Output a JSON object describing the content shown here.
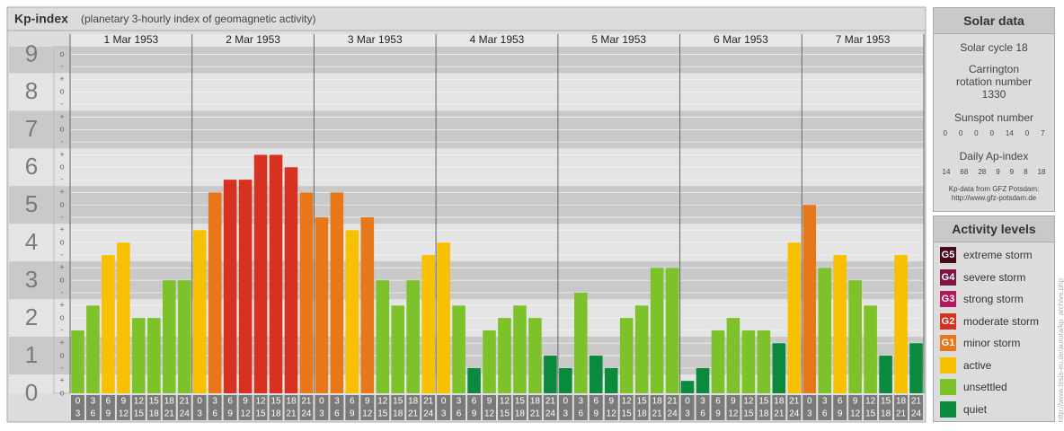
{
  "chart_data": {
    "type": "bar",
    "title": "Kp-index",
    "subtitle": "(planetary 3-hourly index of geomagnetic activity)",
    "days": [
      "1 Mar 1953",
      "2 Mar 1953",
      "3 Mar 1953",
      "4 Mar 1953",
      "5 Mar 1953",
      "6 Mar 1953",
      "7 Mar 1953"
    ],
    "hours": [
      [
        "0",
        "3"
      ],
      [
        "3",
        "6"
      ],
      [
        "6",
        "9"
      ],
      [
        "9",
        "12"
      ],
      [
        "12",
        "15"
      ],
      [
        "15",
        "18"
      ],
      [
        "18",
        "21"
      ],
      [
        "21",
        "24"
      ]
    ],
    "values": [
      1.67,
      2.33,
      3.67,
      4,
      2,
      2,
      3,
      3,
      4.33,
      5.33,
      5.67,
      5.67,
      6.33,
      6.33,
      6,
      5.33,
      4.67,
      5.33,
      4.33,
      4.67,
      3,
      2.33,
      3,
      3.67,
      4,
      2.33,
      0.67,
      1.67,
      2,
      2.33,
      2,
      1,
      0.67,
      2.67,
      1,
      0.67,
      2,
      2.33,
      3.33,
      3.33,
      0.33,
      0.67,
      1.67,
      2,
      1.67,
      1.67,
      1.33,
      4,
      5,
      3.33,
      3.67,
      3,
      2.33,
      1,
      3.67,
      1.33
    ],
    "colors": [
      "#7dc12b",
      "#7dc12b",
      "#f7c000",
      "#f7c000",
      "#7dc12b",
      "#7dc12b",
      "#7dc12b",
      "#7dc12b",
      "#f7c000",
      "#e8771a",
      "#d8311f",
      "#d8311f",
      "#d8311f",
      "#d8311f",
      "#d8311f",
      "#e8771a",
      "#e8771a",
      "#e8771a",
      "#f7c000",
      "#e8771a",
      "#7dc12b",
      "#7dc12b",
      "#7dc12b",
      "#f7c000",
      "#f7c000",
      "#7dc12b",
      "#0b8a3e",
      "#7dc12b",
      "#7dc12b",
      "#7dc12b",
      "#7dc12b",
      "#0b8a3e",
      "#0b8a3e",
      "#7dc12b",
      "#0b8a3e",
      "#0b8a3e",
      "#7dc12b",
      "#7dc12b",
      "#7dc12b",
      "#7dc12b",
      "#0b8a3e",
      "#0b8a3e",
      "#7dc12b",
      "#7dc12b",
      "#7dc12b",
      "#7dc12b",
      "#0b8a3e",
      "#f7c000",
      "#e8771a",
      "#7dc12b",
      "#f7c000",
      "#7dc12b",
      "#7dc12b",
      "#0b8a3e",
      "#f7c000",
      "#0b8a3e"
    ],
    "ylim": [
      0,
      9.2
    ],
    "yticks": [
      0,
      1,
      2,
      3,
      4,
      5,
      6,
      7,
      8,
      9
    ],
    "yminor_ticks": [
      {
        "value": 0,
        "label": "o"
      },
      {
        "value": 0.33,
        "label": "+"
      },
      {
        "value": 0.67,
        "label": "-"
      },
      {
        "value": 1,
        "label": "o"
      },
      {
        "value": 1.33,
        "label": "+"
      },
      {
        "value": 1.67,
        "label": "-"
      },
      {
        "value": 2,
        "label": "o"
      },
      {
        "value": 2.33,
        "label": "+"
      },
      {
        "value": 2.67,
        "label": "-"
      },
      {
        "value": 3,
        "label": "o"
      },
      {
        "value": 3.33,
        "label": "+"
      },
      {
        "value": 3.67,
        "label": "-"
      },
      {
        "value": 4,
        "label": "o"
      },
      {
        "value": 4.33,
        "label": "+"
      },
      {
        "value": 4.67,
        "label": "-"
      },
      {
        "value": 5,
        "label": "o"
      },
      {
        "value": 5.33,
        "label": "+"
      },
      {
        "value": 5.67,
        "label": "-"
      },
      {
        "value": 6,
        "label": "o"
      },
      {
        "value": 6.33,
        "label": "+"
      },
      {
        "value": 6.67,
        "label": "-"
      },
      {
        "value": 7,
        "label": "o"
      },
      {
        "value": 7.33,
        "label": "+"
      },
      {
        "value": 7.67,
        "label": "-"
      },
      {
        "value": 8,
        "label": "o"
      },
      {
        "value": 8.33,
        "label": "+"
      },
      {
        "value": 8.67,
        "label": "-"
      },
      {
        "value": 9,
        "label": "o"
      }
    ],
    "grid": true,
    "legend": {
      "title": "Activity levels",
      "items": [
        {
          "badge": "G5",
          "name": "extreme storm",
          "color": "#4a0a1e"
        },
        {
          "badge": "G4",
          "name": "severe storm",
          "color": "#7c1446"
        },
        {
          "badge": "G3",
          "name": "strong storm",
          "color": "#b3175d"
        },
        {
          "badge": "G2",
          "name": "moderate storm",
          "color": "#d8311f"
        },
        {
          "badge": "G1",
          "name": "minor storm",
          "color": "#e8771a"
        },
        {
          "name": "active",
          "color": "#f7c000"
        },
        {
          "name": "unsettled",
          "color": "#7dc12b"
        },
        {
          "name": "quiet",
          "color": "#0b8a3e"
        }
      ]
    }
  },
  "solar_data": {
    "title": "Solar data",
    "cycle": "Solar cycle 18",
    "carrington": "Carrington rotation number 1330",
    "sunspot_title": "Sunspot number",
    "sunspots": [
      0,
      0,
      0,
      0,
      14,
      0,
      7
    ],
    "ap_title": "Daily Ap-index",
    "ap": [
      14,
      68,
      28,
      9,
      9,
      8,
      18
    ],
    "credit": "Kp-data from GFZ Potsdam:",
    "credit_url": "http://www.gfz-potsdam.de"
  },
  "source_url": "http://www.tesis-eu.de/aurora/kp_archive.php"
}
